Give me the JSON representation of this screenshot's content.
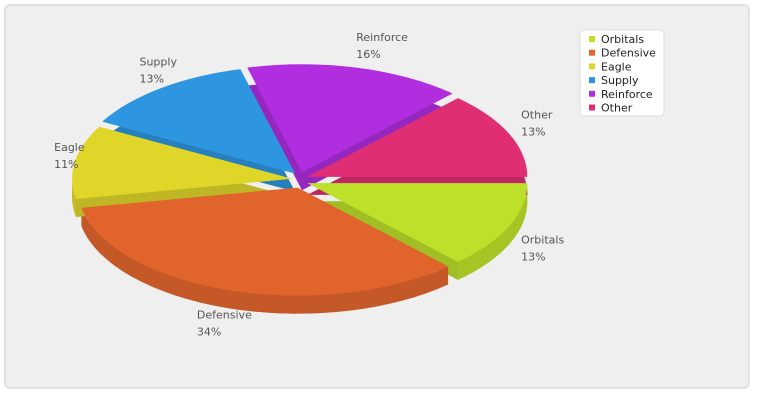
{
  "chart_data": {
    "type": "pie3d",
    "categories": [
      "Orbitals",
      "Defensive",
      "Eagle",
      "Supply",
      "Reinforce",
      "Other"
    ],
    "values": [
      13,
      34,
      11,
      13,
      16,
      13
    ],
    "value_labels": [
      "13%",
      "34%",
      "11%",
      "13%",
      "16%",
      "13%"
    ],
    "colors": [
      "#bde02a",
      "#e0642c",
      "#e0d62a",
      "#2e96e0",
      "#b02ee0",
      "#e02e74"
    ],
    "legend": "top-right"
  }
}
